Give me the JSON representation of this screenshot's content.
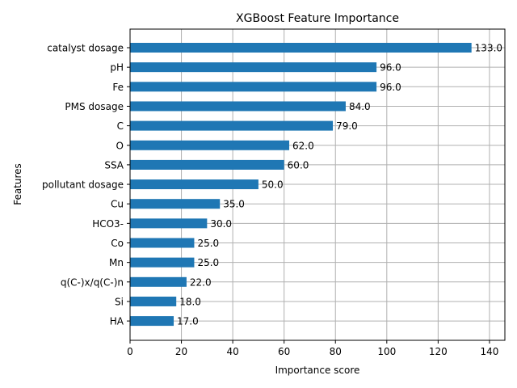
{
  "chart_data": {
    "type": "bar",
    "orientation": "horizontal",
    "title": "XGBoost Feature Importance",
    "xlabel": "Importance score",
    "ylabel": "Features",
    "xlim": [
      0,
      146
    ],
    "xticks": [
      "0",
      "20",
      "40",
      "60",
      "80",
      "100",
      "120",
      "140"
    ],
    "grid": true,
    "categories": [
      "catalyst dosage",
      "pH",
      "Fe",
      "PMS dosage",
      "C",
      "O",
      "SSA",
      "pollutant dosage",
      "Cu",
      "HCO3-",
      "Co",
      "Mn",
      "q(C-)x/q(C-)n",
      "Si",
      "HA"
    ],
    "values": [
      133.0,
      96.0,
      96.0,
      84.0,
      79.0,
      62.0,
      60.0,
      50.0,
      35.0,
      30.0,
      25.0,
      25.0,
      22.0,
      18.0,
      17.0
    ],
    "value_labels": [
      "133.0",
      "96.0",
      "96.0",
      "84.0",
      "79.0",
      "62.0",
      "60.0",
      "50.0",
      "35.0",
      "30.0",
      "25.0",
      "25.0",
      "22.0",
      "18.0",
      "17.0"
    ],
    "bar_color": "#1f77b4",
    "grid_color": "#b0b0b0"
  }
}
